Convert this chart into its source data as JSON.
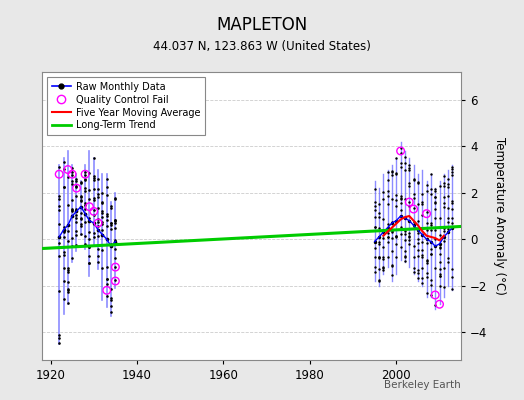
{
  "title": "MAPLETON",
  "subtitle": "44.037 N, 123.863 W (United States)",
  "ylabel": "Temperature Anomaly (°C)",
  "credit": "Berkeley Earth",
  "xlim": [
    1918,
    2015
  ],
  "ylim": [
    -5.2,
    7.2
  ],
  "yticks": [
    -4,
    -2,
    0,
    2,
    4,
    6
  ],
  "xticks": [
    1920,
    1940,
    1960,
    1980,
    2000
  ],
  "bg_color": "#e8e8e8",
  "plot_bg_color": "#ffffff",
  "early_years": [
    1922,
    1923,
    1924,
    1925,
    1926,
    1927,
    1928,
    1929,
    1930,
    1931,
    1932,
    1933,
    1934,
    1935
  ],
  "early_mins": [
    -4.5,
    -3.2,
    -2.8,
    -1.0,
    -0.5,
    0.2,
    -0.4,
    -1.6,
    -0.3,
    -1.3,
    -2.6,
    -2.9,
    -3.3,
    -2.1
  ],
  "early_maxs": [
    3.2,
    3.5,
    3.8,
    3.2,
    2.8,
    2.5,
    3.2,
    3.8,
    3.5,
    3.0,
    2.8,
    2.8,
    1.6,
    2.0
  ],
  "early_means": [
    0.1,
    0.4,
    0.6,
    1.0,
    1.2,
    1.4,
    1.1,
    0.8,
    0.7,
    0.4,
    0.2,
    0.0,
    -0.3,
    -0.1
  ],
  "early_qc_positions": [
    [
      1922,
      2.8
    ],
    [
      1924,
      3.0
    ],
    [
      1925,
      2.8
    ],
    [
      1926,
      2.2
    ],
    [
      1928,
      2.8
    ],
    [
      1929,
      1.4
    ],
    [
      1930,
      1.2
    ],
    [
      1931,
      0.7
    ],
    [
      1933,
      -2.2
    ],
    [
      1935,
      -1.8
    ],
    [
      1935,
      -1.2
    ]
  ],
  "late_years": [
    1995,
    1996,
    1997,
    1998,
    1999,
    2000,
    2001,
    2002,
    2003,
    2004,
    2005,
    2006,
    2007,
    2008,
    2009,
    2010,
    2011,
    2012,
    2013
  ],
  "late_mins": [
    -1.8,
    -2.0,
    -1.5,
    -1.2,
    -1.8,
    -1.5,
    -0.9,
    -1.0,
    -1.2,
    -1.5,
    -1.8,
    -2.0,
    -2.5,
    -2.5,
    -3.0,
    -2.8,
    -2.5,
    -2.0,
    -2.2
  ],
  "late_maxs": [
    2.5,
    2.2,
    2.8,
    3.0,
    3.2,
    3.5,
    4.2,
    3.8,
    3.5,
    3.2,
    2.8,
    3.0,
    2.5,
    2.8,
    2.2,
    2.5,
    2.8,
    3.0,
    3.2
  ],
  "late_means": [
    -0.1,
    0.1,
    0.3,
    0.5,
    0.7,
    0.8,
    1.0,
    0.9,
    0.8,
    0.6,
    0.4,
    0.2,
    0.0,
    -0.1,
    -0.3,
    -0.2,
    0.1,
    0.3,
    0.5
  ],
  "late_qc_positions": [
    [
      2001,
      3.8
    ],
    [
      2003,
      1.6
    ],
    [
      2004,
      1.3
    ],
    [
      2007,
      1.1
    ],
    [
      2009,
      -2.4
    ],
    [
      2010,
      -2.8
    ]
  ],
  "trend_x": [
    1918,
    2015
  ],
  "trend_y": [
    -0.4,
    0.55
  ],
  "early_ma_x": [],
  "early_ma_y": [],
  "late_ma_x": [
    1997,
    1999,
    2001,
    2002,
    2003,
    2004,
    2005,
    2006,
    2007,
    2008,
    2009,
    2010,
    2011
  ],
  "late_ma_y": [
    0.15,
    0.5,
    0.85,
    0.95,
    1.0,
    0.8,
    0.6,
    0.35,
    0.15,
    0.1,
    0.05,
    -0.05,
    0.15
  ]
}
